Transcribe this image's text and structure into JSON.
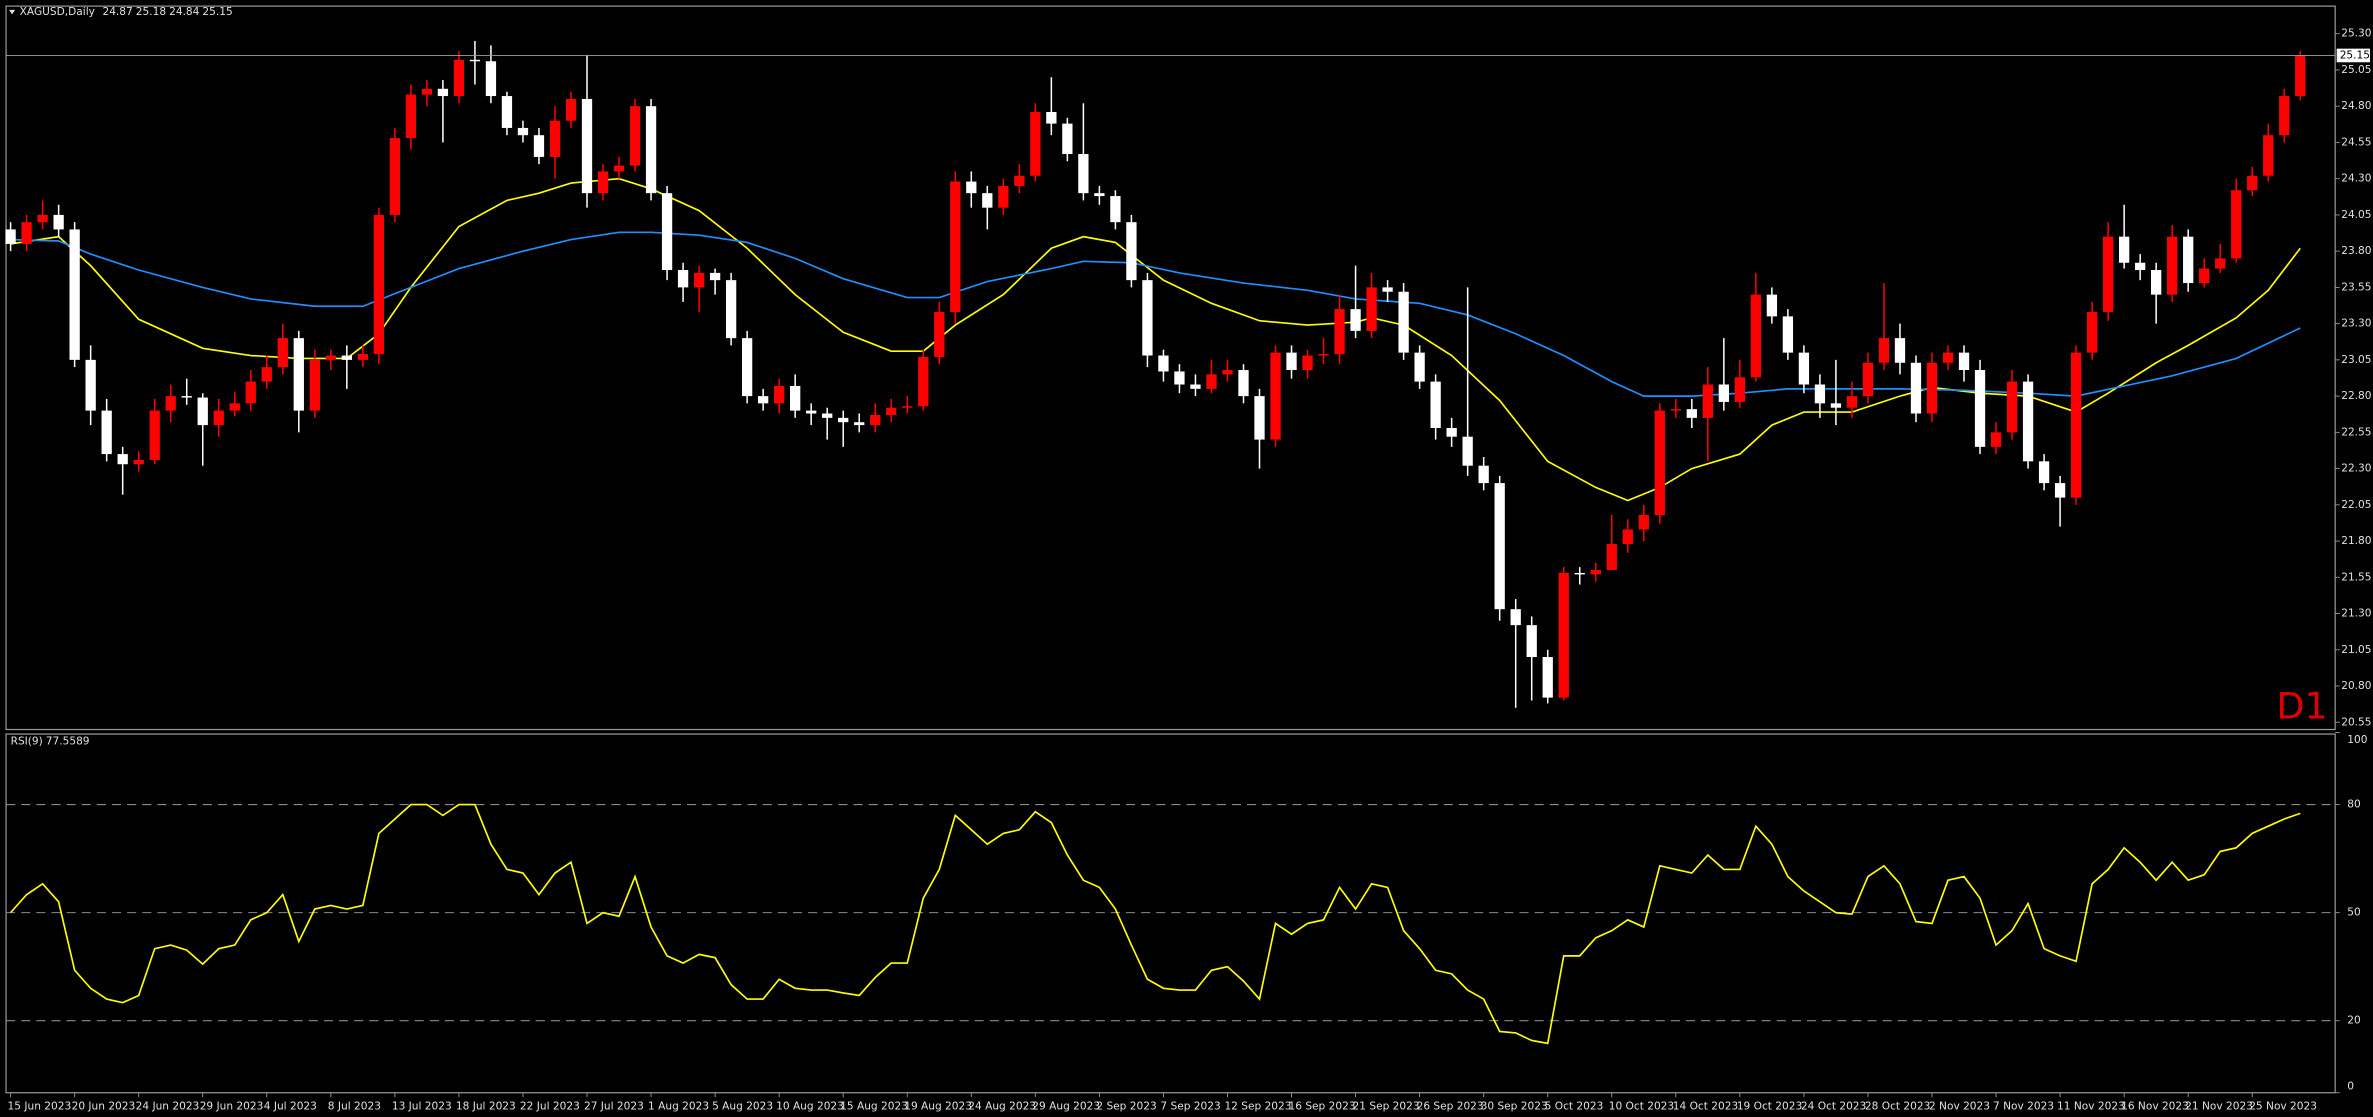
{
  "chart_data": {
    "type": "candlestick",
    "title": "XAGUSD,Daily",
    "timeframe": "D1",
    "up_color": "#ff0000",
    "down_color": "#ffffff",
    "current_price_line": true,
    "open": [
      23.95,
      23.85,
      24.0,
      24.05,
      23.95,
      23.05,
      22.7,
      22.4,
      22.33,
      22.36,
      22.7,
      22.8,
      22.79,
      22.6,
      22.7,
      22.75,
      22.9,
      23.0,
      23.2,
      22.7,
      23.05,
      23.08,
      23.05,
      23.09,
      24.05,
      24.58,
      24.88,
      24.92,
      24.87,
      25.12,
      25.11,
      24.87,
      24.65,
      24.6,
      24.45,
      24.7,
      24.85,
      24.2,
      24.35,
      24.39,
      24.8,
      24.2,
      23.67,
      23.55,
      23.65,
      23.6,
      23.2,
      22.8,
      22.75,
      22.87,
      22.7,
      22.68,
      22.65,
      22.62,
      22.6,
      22.67,
      22.72,
      22.73,
      23.07,
      23.38,
      24.28,
      24.2,
      24.1,
      24.25,
      24.32,
      24.76,
      24.68,
      24.47,
      24.2,
      24.18,
      24.0,
      23.6,
      23.08,
      22.97,
      22.88,
      22.85,
      22.95,
      22.98,
      22.8,
      22.5,
      23.1,
      22.98,
      23.08,
      23.09,
      23.4,
      23.25,
      23.55,
      23.52,
      23.1,
      22.9,
      22.58,
      22.52,
      22.32,
      22.2,
      21.33,
      21.22,
      21.0,
      20.72,
      21.58,
      21.57,
      21.6,
      21.78,
      21.88,
      21.98,
      22.7,
      22.71,
      22.65,
      22.88,
      22.76,
      22.93,
      23.5,
      23.35,
      23.1,
      22.88,
      22.75,
      22.72,
      22.8,
      23.03,
      23.2,
      23.03,
      22.68,
      23.03,
      23.1,
      22.98,
      22.45,
      22.55,
      22.9,
      22.35,
      22.2,
      22.1,
      23.1,
      23.38,
      23.9,
      23.72,
      23.67,
      23.5,
      23.9,
      23.58,
      23.68,
      23.75,
      24.22,
      24.32,
      24.6,
      24.87
    ],
    "high": [
      24.0,
      24.05,
      24.15,
      24.12,
      24.0,
      23.15,
      22.78,
      22.45,
      22.42,
      22.78,
      22.88,
      22.92,
      22.82,
      22.78,
      22.83,
      22.98,
      23.08,
      23.3,
      23.25,
      23.12,
      23.12,
      23.15,
      23.15,
      24.1,
      24.65,
      24.95,
      24.98,
      24.98,
      25.18,
      25.25,
      25.22,
      24.9,
      24.7,
      24.65,
      24.8,
      24.9,
      25.15,
      24.4,
      24.45,
      24.85,
      24.85,
      24.25,
      23.72,
      23.7,
      23.68,
      23.65,
      23.25,
      22.85,
      22.92,
      22.95,
      22.75,
      22.72,
      22.7,
      22.68,
      22.75,
      22.78,
      22.8,
      23.12,
      23.45,
      24.35,
      24.35,
      24.25,
      24.3,
      24.4,
      24.82,
      25.0,
      24.72,
      24.82,
      24.25,
      24.22,
      24.05,
      23.65,
      23.12,
      23.02,
      22.95,
      23.05,
      23.05,
      23.02,
      22.85,
      23.15,
      23.15,
      23.12,
      23.2,
      23.5,
      23.7,
      23.65,
      23.6,
      23.58,
      23.15,
      22.95,
      22.65,
      23.55,
      22.38,
      22.25,
      21.4,
      21.28,
      21.05,
      21.62,
      21.62,
      21.65,
      21.98,
      21.95,
      22.05,
      22.75,
      22.78,
      22.78,
      23.0,
      23.2,
      23.05,
      23.65,
      23.55,
      23.4,
      23.15,
      22.95,
      23.05,
      22.9,
      23.1,
      23.58,
      23.3,
      23.08,
      23.1,
      23.15,
      23.15,
      23.05,
      22.62,
      22.98,
      22.95,
      22.4,
      22.25,
      23.15,
      23.45,
      24.0,
      24.12,
      23.78,
      23.72,
      23.98,
      23.95,
      23.75,
      23.85,
      24.3,
      24.38,
      24.68,
      24.92,
      25.18
    ],
    "low": [
      23.8,
      23.8,
      23.95,
      23.9,
      23.0,
      22.6,
      22.35,
      22.12,
      22.28,
      22.33,
      22.62,
      22.74,
      22.32,
      22.52,
      22.66,
      22.7,
      22.85,
      22.95,
      22.55,
      22.65,
      22.98,
      22.85,
      23.0,
      23.02,
      24.0,
      24.5,
      24.8,
      24.55,
      24.82,
      24.95,
      24.82,
      24.6,
      24.55,
      24.4,
      24.3,
      24.65,
      24.1,
      24.15,
      24.3,
      24.35,
      24.15,
      23.6,
      23.45,
      23.38,
      23.5,
      23.15,
      22.75,
      22.7,
      22.68,
      22.65,
      22.6,
      22.5,
      22.45,
      22.55,
      22.55,
      22.62,
      22.68,
      22.7,
      23.02,
      23.3,
      24.1,
      23.95,
      24.05,
      24.2,
      24.28,
      24.6,
      24.42,
      24.15,
      24.12,
      23.95,
      23.55,
      23.0,
      22.9,
      22.82,
      22.8,
      22.82,
      22.9,
      22.75,
      22.3,
      22.45,
      22.92,
      22.92,
      23.02,
      23.02,
      23.2,
      23.2,
      23.45,
      23.05,
      22.85,
      22.5,
      22.45,
      22.25,
      22.15,
      21.25,
      20.65,
      20.7,
      20.68,
      20.7,
      21.5,
      21.52,
      21.6,
      21.72,
      21.8,
      21.92,
      22.65,
      22.58,
      22.35,
      22.7,
      22.72,
      22.9,
      23.3,
      23.05,
      22.82,
      22.65,
      22.6,
      22.65,
      22.75,
      22.98,
      22.95,
      22.62,
      22.62,
      22.98,
      22.9,
      22.4,
      22.4,
      22.5,
      22.3,
      22.15,
      21.9,
      22.05,
      23.05,
      23.32,
      23.68,
      23.6,
      23.3,
      23.45,
      23.52,
      23.55,
      23.65,
      23.72,
      24.18,
      24.28,
      24.55,
      24.84
    ],
    "close": [
      23.85,
      24.0,
      24.05,
      23.95,
      23.05,
      22.7,
      22.4,
      22.33,
      22.36,
      22.7,
      22.8,
      22.79,
      22.6,
      22.7,
      22.75,
      22.9,
      23.0,
      23.2,
      22.7,
      23.05,
      23.08,
      23.05,
      23.09,
      24.05,
      24.58,
      24.88,
      24.92,
      24.87,
      25.12,
      25.11,
      24.87,
      24.65,
      24.6,
      24.45,
      24.7,
      24.85,
      24.2,
      24.35,
      24.39,
      24.8,
      24.2,
      23.67,
      23.55,
      23.65,
      23.6,
      23.2,
      22.8,
      22.75,
      22.87,
      22.7,
      22.68,
      22.65,
      22.62,
      22.6,
      22.67,
      22.72,
      22.73,
      23.07,
      23.38,
      24.28,
      24.2,
      24.1,
      24.25,
      24.32,
      24.76,
      24.68,
      24.47,
      24.2,
      24.18,
      24.0,
      23.6,
      23.08,
      22.97,
      22.88,
      22.85,
      22.95,
      22.98,
      22.8,
      22.5,
      23.1,
      22.98,
      23.08,
      23.09,
      23.4,
      23.25,
      23.55,
      23.52,
      23.1,
      22.9,
      22.58,
      22.52,
      22.32,
      22.2,
      21.33,
      21.22,
      21.0,
      20.72,
      21.58,
      21.57,
      21.6,
      21.78,
      21.88,
      21.98,
      22.7,
      22.71,
      22.65,
      22.88,
      22.76,
      22.93,
      23.5,
      23.35,
      23.1,
      22.88,
      22.75,
      22.72,
      22.8,
      23.03,
      23.2,
      23.03,
      22.68,
      23.03,
      23.1,
      22.98,
      22.45,
      22.55,
      22.9,
      22.35,
      22.2,
      22.1,
      23.1,
      23.38,
      23.9,
      23.72,
      23.67,
      23.5,
      23.9,
      23.58,
      23.68,
      23.75,
      24.22,
      24.32,
      24.6,
      24.87,
      25.15
    ],
    "ylim": [
      20.5,
      25.48
    ],
    "yticks": [
      {
        "value": 25.3,
        "label": "25.30"
      },
      25.05,
      {
        "value": 24.8,
        "label": "24.80"
      },
      24.55,
      {
        "value": 24.3,
        "label": "24.30"
      },
      24.05,
      {
        "value": 23.8,
        "label": "23.80"
      },
      23.55,
      {
        "value": 23.3,
        "label": "23.30"
      },
      23.05,
      {
        "value": 22.8,
        "label": "22.80"
      },
      22.55,
      {
        "value": 22.3,
        "label": "22.30"
      },
      22.05,
      {
        "value": 21.8,
        "label": "21.80"
      },
      21.55,
      {
        "value": 21.3,
        "label": "21.30"
      },
      21.05,
      {
        "value": 20.8,
        "label": "20.80"
      },
      20.55
    ],
    "xticks": [
      {
        "value": 0,
        "label": "15 Jun 2023"
      },
      {
        "value": 4,
        "label": "20 Jun 2023"
      },
      {
        "value": 8,
        "label": "24 Jun 2023"
      },
      {
        "value": 12,
        "label": "29 Jun 2023"
      },
      {
        "value": 16,
        "label": "4 Jul 2023"
      },
      {
        "value": 20,
        "label": "8 Jul 2023"
      },
      {
        "value": 24,
        "label": "13 Jul 2023"
      },
      {
        "value": 28,
        "label": "18 Jul 2023"
      },
      {
        "value": 32,
        "label": "22 Jul 2023"
      },
      {
        "value": 36,
        "label": "27 Jul 2023"
      },
      {
        "value": 40,
        "label": "1 Aug 2023"
      },
      {
        "value": 44,
        "label": "5 Aug 2023"
      },
      {
        "value": 48,
        "label": "10 Aug 2023"
      },
      {
        "value": 52,
        "label": "15 Aug 2023"
      },
      {
        "value": 56,
        "label": "19 Aug 2023"
      },
      {
        "value": 60,
        "label": "24 Aug 2023"
      },
      {
        "value": 64,
        "label": "29 Aug 2023"
      },
      {
        "value": 68,
        "label": "2 Sep 2023"
      },
      {
        "value": 72,
        "label": "7 Sep 2023"
      },
      {
        "value": 76,
        "label": "12 Sep 2023"
      },
      {
        "value": 80,
        "label": "16 Sep 2023"
      },
      {
        "value": 84,
        "label": "21 Sep 2023"
      },
      {
        "value": 88,
        "label": "26 Sep 2023"
      },
      {
        "value": 92,
        "label": "30 Sep 2023"
      },
      {
        "value": 96,
        "label": "5 Oct 2023"
      },
      {
        "value": 100,
        "label": "10 Oct 2023"
      },
      {
        "value": 104,
        "label": "14 Oct 2023"
      },
      {
        "value": 108,
        "label": "19 Oct 2023"
      },
      {
        "value": 112,
        "label": "24 Oct 2023"
      },
      {
        "value": 116,
        "label": "28 Oct 2023"
      },
      {
        "value": 120,
        "label": "2 Nov 2023"
      },
      {
        "value": 124,
        "label": "7 Nov 2023"
      },
      {
        "value": 128,
        "label": "11 Nov 2023"
      },
      {
        "value": 132,
        "label": "16 Nov 2023"
      },
      {
        "value": 136,
        "label": "21 Nov 2023"
      },
      {
        "value": 140,
        "label": "25 Nov 2023"
      }
    ],
    "overlays": [
      {
        "color": "#ffff00",
        "x": [
          0,
          3,
          5,
          8,
          12,
          15,
          18,
          21,
          23,
          25,
          28,
          31,
          33,
          35,
          38,
          40,
          43,
          46,
          49,
          52,
          55,
          57,
          59,
          62,
          65,
          67,
          69,
          72,
          75,
          78,
          81,
          84,
          85,
          87,
          90,
          93,
          96,
          99,
          101,
          103,
          105,
          108,
          110,
          112,
          115,
          118,
          120,
          123,
          126,
          129,
          131,
          134,
          136,
          139,
          141,
          143
        ],
        "values": [
          23.85,
          23.9,
          23.7,
          23.33,
          23.13,
          23.08,
          23.06,
          23.06,
          23.23,
          23.55,
          23.97,
          24.15,
          24.2,
          24.27,
          24.3,
          24.23,
          24.08,
          23.82,
          23.5,
          23.24,
          23.11,
          23.11,
          23.29,
          23.5,
          23.82,
          23.9,
          23.86,
          23.6,
          23.44,
          23.32,
          23.29,
          23.31,
          23.34,
          23.29,
          23.08,
          22.77,
          22.35,
          22.17,
          22.08,
          22.17,
          22.3,
          22.4,
          22.6,
          22.69,
          22.69,
          22.8,
          22.86,
          22.82,
          22.8,
          22.69,
          22.82,
          23.03,
          23.15,
          23.34,
          23.53,
          23.82
        ]
      },
      {
        "color": "#1e90ff",
        "x": [
          0,
          3,
          5,
          8,
          12,
          15,
          19,
          22,
          25,
          28,
          32,
          35,
          38,
          40,
          43,
          46,
          49,
          52,
          56,
          58,
          61,
          65,
          67,
          70,
          73,
          77,
          81,
          84,
          88,
          91,
          94,
          97,
          100,
          102,
          105,
          108,
          111,
          115,
          118,
          122,
          126,
          129,
          132,
          135,
          139,
          143
        ],
        "values": [
          23.88,
          23.87,
          23.78,
          23.67,
          23.55,
          23.47,
          23.42,
          23.42,
          23.55,
          23.68,
          23.8,
          23.88,
          23.93,
          23.93,
          23.91,
          23.86,
          23.75,
          23.61,
          23.48,
          23.48,
          23.59,
          23.68,
          23.73,
          23.72,
          23.65,
          23.58,
          23.53,
          23.47,
          23.44,
          23.36,
          23.23,
          23.08,
          22.9,
          22.8,
          22.8,
          22.82,
          22.85,
          22.85,
          22.85,
          22.84,
          22.82,
          22.8,
          22.87,
          22.94,
          23.06,
          23.27
        ]
      }
    ],
    "rsi": {
      "type": "line",
      "name": "RSI(9)",
      "color": "#ffff00",
      "values": [
        50,
        55,
        58,
        53,
        34,
        29,
        26,
        25,
        27,
        40,
        41,
        39.6,
        35.7,
        40,
        41,
        48,
        50,
        55,
        42,
        51,
        52,
        51,
        52,
        72,
        76,
        80,
        80,
        77,
        80,
        80,
        69,
        62,
        61,
        55,
        61,
        64,
        47,
        50,
        49,
        60,
        46,
        38,
        36,
        38.4,
        37.5,
        30,
        26,
        26,
        31.5,
        29,
        28.5,
        28.5,
        27.7,
        27,
        32,
        36,
        36,
        54,
        62,
        77,
        73,
        69,
        72,
        73,
        78,
        75,
        66,
        59,
        57,
        51,
        41,
        31.5,
        29,
        28.5,
        28.5,
        34,
        35,
        31,
        26,
        47,
        44,
        47,
        48,
        57,
        51,
        58,
        57,
        45,
        40,
        34,
        33,
        28.5,
        26,
        17,
        16.6,
        14.5,
        13.7,
        38,
        38,
        43,
        45,
        48,
        46,
        63,
        62,
        61,
        66,
        62,
        62,
        74,
        69,
        60,
        56,
        53,
        50,
        49.6,
        60,
        63,
        58,
        47.5,
        47,
        59,
        60,
        54,
        41,
        45,
        52.5,
        40,
        38,
        36.5,
        58,
        62,
        68,
        64,
        59,
        64,
        59,
        60.5,
        67,
        68,
        72,
        74,
        76,
        77.5589
      ],
      "ylim": [
        0,
        100
      ],
      "yticks": [
        100,
        80,
        50,
        20,
        0
      ],
      "levels": [
        80,
        50,
        20
      ]
    }
  }
}
